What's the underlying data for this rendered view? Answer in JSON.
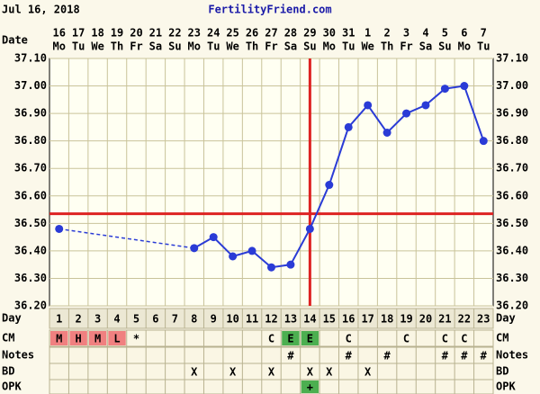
{
  "header": {
    "date": "Jul 16, 2018",
    "site": "FertilityFriend.com"
  },
  "chart_data": {
    "type": "line",
    "date_label": "Date",
    "categories": [
      "16",
      "17",
      "18",
      "19",
      "20",
      "21",
      "22",
      "23",
      "24",
      "25",
      "26",
      "27",
      "28",
      "29",
      "30",
      "31",
      "1",
      "2",
      "3",
      "4",
      "5",
      "6",
      "7"
    ],
    "weekdays": [
      "Mo",
      "Tu",
      "We",
      "Th",
      "Fr",
      "Sa",
      "Su",
      "Mo",
      "Tu",
      "We",
      "Th",
      "Fr",
      "Sa",
      "Su",
      "Mo",
      "Tu",
      "We",
      "Th",
      "Fr",
      "Sa",
      "Su",
      "Mo",
      "Tu"
    ],
    "values": [
      36.48,
      null,
      null,
      null,
      null,
      null,
      null,
      36.41,
      36.45,
      36.38,
      36.4,
      36.34,
      36.35,
      36.48,
      36.64,
      36.85,
      36.93,
      36.83,
      36.9,
      36.93,
      36.99,
      37.0,
      36.8
    ],
    "color": "#2a3bd6",
    "ylim": [
      36.2,
      37.1
    ],
    "yticks": [
      {
        "value": 36.2,
        "label": "36.20"
      },
      {
        "value": 36.3,
        "label": "36.30"
      },
      {
        "value": 36.4,
        "label": "36.40"
      },
      {
        "value": 36.5,
        "label": "36.50"
      },
      {
        "value": 36.6,
        "label": "36.60"
      },
      {
        "value": 36.7,
        "label": "36.70"
      },
      {
        "value": 36.8,
        "label": "36.80"
      },
      {
        "value": 36.9,
        "label": "36.90"
      },
      {
        "value": 37.0,
        "label": "37.00"
      },
      {
        "value": 37.1,
        "label": "37.10"
      }
    ],
    "grid": true,
    "coverline": 36.535,
    "ovulation_day": 14,
    "marker_color": "#dd2222",
    "rows": [
      {
        "label": "Day",
        "cells": [
          "1",
          "2",
          "3",
          "4",
          "5",
          "6",
          "7",
          "8",
          "9",
          "10",
          "11",
          "12",
          "13",
          "14",
          "15",
          "16",
          "17",
          "18",
          "19",
          "20",
          "21",
          "22",
          "23"
        ]
      },
      {
        "label": "CM",
        "cells": [
          "M",
          "H",
          "M",
          "L",
          "*",
          null,
          null,
          null,
          null,
          null,
          null,
          "C",
          "E",
          "E",
          null,
          "C",
          null,
          null,
          "C",
          null,
          "C",
          "C",
          null
        ],
        "colors": [
          "#f08080",
          "#f08080",
          "#f08080",
          "#f08080",
          null,
          null,
          null,
          null,
          null,
          null,
          null,
          null,
          "#4caf50",
          "#4caf50",
          null,
          null,
          null,
          null,
          null,
          null,
          null,
          null,
          null
        ]
      },
      {
        "label": "Notes",
        "cells": [
          null,
          null,
          null,
          null,
          null,
          null,
          null,
          null,
          null,
          null,
          null,
          null,
          "#",
          null,
          null,
          "#",
          null,
          "#",
          null,
          null,
          "#",
          "#",
          "#"
        ]
      },
      {
        "label": "BD",
        "cells": [
          null,
          null,
          null,
          null,
          null,
          null,
          null,
          "X",
          null,
          "X",
          null,
          "X",
          null,
          "X",
          "X",
          null,
          "X",
          null,
          null,
          null,
          null,
          null,
          null
        ]
      },
      {
        "label": "OPK",
        "cells": [
          null,
          null,
          null,
          null,
          null,
          null,
          null,
          null,
          null,
          null,
          null,
          null,
          null,
          "+",
          null,
          null,
          null,
          null,
          null,
          null,
          null,
          null,
          null
        ],
        "colors": [
          null,
          null,
          null,
          null,
          null,
          null,
          null,
          null,
          null,
          null,
          null,
          null,
          null,
          "#4caf50",
          null,
          null,
          null,
          null,
          null,
          null,
          null,
          null,
          null
        ]
      }
    ]
  }
}
